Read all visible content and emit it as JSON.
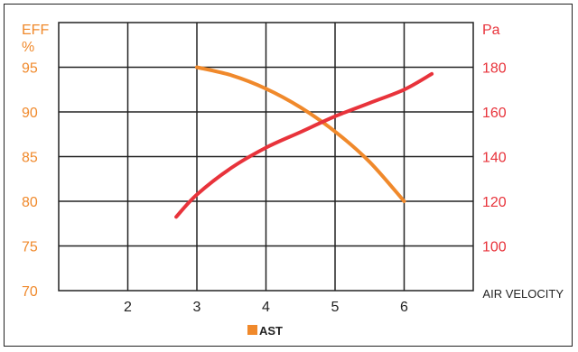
{
  "chart_data": {
    "type": "line",
    "title": "",
    "x_axis": {
      "label": "AIR VELOCITY",
      "range": [
        1,
        7
      ],
      "ticks": [
        2,
        3,
        4,
        5,
        6
      ]
    },
    "y_left": {
      "label": "EFF",
      "unit": "%",
      "range": [
        70,
        100
      ],
      "ticks": [
        70,
        75,
        80,
        85,
        90,
        95
      ],
      "color": "#f0892b"
    },
    "y_right": {
      "label": "Pa",
      "range": [
        80,
        200
      ],
      "ticks": [
        100,
        120,
        140,
        160,
        180
      ],
      "color": "#e8333b"
    },
    "grid": true,
    "legend_position": "bottom-center",
    "legend_entries": [
      {
        "label": "AST",
        "color": "#f0892b"
      }
    ],
    "series": [
      {
        "name": "AST",
        "axis": "left",
        "color": "#f0892b",
        "x": [
          3.0,
          3.5,
          4.0,
          4.5,
          5.0,
          5.5,
          6.0
        ],
        "y": [
          95.0,
          94.1,
          92.6,
          90.5,
          87.8,
          84.4,
          80.0
        ]
      },
      {
        "axis": "right",
        "color": "#e8333b",
        "x": [
          2.7,
          3.0,
          3.5,
          4.0,
          4.5,
          5.0,
          5.5,
          6.0,
          6.4
        ],
        "y": [
          113,
          123,
          135,
          144,
          151,
          158,
          164,
          170,
          177
        ]
      }
    ]
  }
}
